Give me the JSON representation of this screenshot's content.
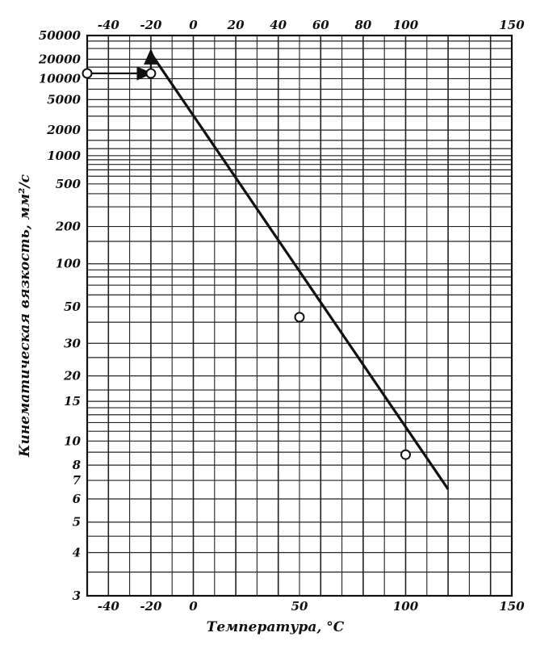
{
  "chart_data": {
    "type": "line",
    "title": "",
    "xlabel": "Температура, °С",
    "ylabel": "Кинематическая вязкость, мм²/с",
    "x_scale": "linear",
    "y_scale": "walther (log-log)",
    "xlim": [
      -50,
      150
    ],
    "ylim": [
      3,
      50000
    ],
    "grid": true,
    "x_ticks_top": [
      "-40",
      "-20",
      "0",
      "20",
      "40",
      "60",
      "80",
      "100",
      "150"
    ],
    "x_ticks_bottom": [
      "-40",
      "-20",
      "0",
      "50",
      "100",
      "150"
    ],
    "y_ticks": [
      "50000",
      "20000",
      "10000",
      "5000",
      "2000",
      "1000",
      "500",
      "200",
      "100",
      "50",
      "30",
      "20",
      "15",
      "10",
      "8",
      "7",
      "6",
      "5",
      "4",
      "3"
    ],
    "series": [
      {
        "x": [
          -20,
          120
        ],
        "y": [
          25000,
          6.5
        ]
      }
    ],
    "points": [
      {
        "x": -50,
        "y": 12000
      },
      {
        "x": -20,
        "y": 12000
      },
      {
        "x": 50,
        "y": 43
      },
      {
        "x": 100,
        "y": 8.8
      }
    ],
    "arrows": [
      {
        "from": [
          -50,
          12000
        ],
        "to": [
          -20,
          12000
        ]
      },
      {
        "from": [
          -20,
          12000
        ],
        "to": [
          -20,
          28000
        ]
      }
    ]
  }
}
